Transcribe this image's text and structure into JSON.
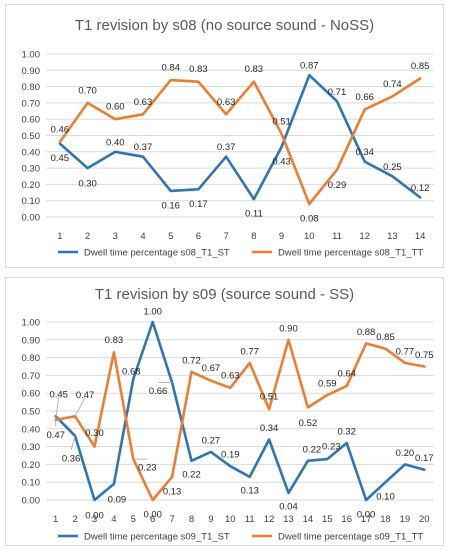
{
  "chart_data": [
    {
      "type": "line",
      "title": "T1 revision by s08 (no source sound - NoSS)",
      "xlabel": "",
      "ylabel": "",
      "ylim": [
        0,
        1
      ],
      "y_ticks": [
        "0.00",
        "0.10",
        "0.20",
        "0.30",
        "0.40",
        "0.50",
        "0.60",
        "0.70",
        "0.80",
        "0.90",
        "1.00"
      ],
      "categories": [
        "1",
        "2",
        "3",
        "4",
        "5",
        "6",
        "7",
        "8",
        "9",
        "10",
        "11",
        "12",
        "13",
        "14"
      ],
      "grid": true,
      "legend_position": "bottom",
      "series": [
        {
          "name": "Dwell time percentage s08_T1_ST",
          "color": "#2e75b6",
          "values": [
            0.45,
            0.3,
            0.4,
            0.37,
            0.16,
            0.17,
            0.37,
            0.11,
            0.43,
            0.87,
            0.71,
            0.34,
            0.25,
            0.12
          ],
          "labels": [
            "0.45",
            "0.30",
            "0.40",
            "0.37",
            "0.16",
            "0.17",
            "0.37",
            "0.11",
            "0.43",
            "0.87",
            "0.71",
            "0.34",
            "0.25",
            "0.12"
          ]
        },
        {
          "name": "Dwell time percentage s08_T1_TT",
          "color": "#ed7d31",
          "values": [
            0.46,
            0.7,
            0.6,
            0.63,
            0.84,
            0.83,
            0.63,
            0.83,
            0.51,
            0.08,
            0.29,
            0.66,
            0.74,
            0.85
          ],
          "labels": [
            "0.46",
            "0.70",
            "0.60",
            "0.63",
            "0.84",
            "0.83",
            "0.63",
            "0.83",
            "0.51",
            "0.08",
            "0.29",
            "0.66",
            "0.74",
            "0.85"
          ]
        }
      ]
    },
    {
      "type": "line",
      "title": "T1 revision by s09 (source sound - SS)",
      "xlabel": "",
      "ylabel": "",
      "ylim": [
        0,
        1
      ],
      "y_ticks": [
        "0.00",
        "0.10",
        "0.20",
        "0.30",
        "0.40",
        "0.50",
        "0.60",
        "0.70",
        "0.80",
        "0.90",
        "1.00"
      ],
      "categories": [
        "1",
        "2",
        "3",
        "4",
        "5",
        "6",
        "7",
        "8",
        "9",
        "10",
        "11",
        "12",
        "13",
        "14",
        "15",
        "16",
        "17",
        "18",
        "19",
        "20"
      ],
      "grid": true,
      "legend_position": "bottom",
      "series": [
        {
          "name": "Dwell time percentage s09_T1_ST",
          "color": "#2e75b6",
          "values": [
            0.47,
            0.36,
            0.0,
            0.09,
            0.68,
            1.0,
            0.66,
            0.22,
            0.27,
            0.19,
            0.13,
            0.34,
            0.04,
            0.22,
            0.23,
            0.32,
            0.0,
            0.1,
            0.2,
            0.17
          ],
          "labels": [
            "0.47",
            "0.36",
            "0.00",
            "0.09",
            "0.68",
            "1.00",
            "0.66",
            "0.22",
            "0.27",
            "0.19",
            "0.13",
            "0.34",
            "0.04",
            "0.22",
            "0.23",
            "0.32",
            "0.00",
            "0.10",
            "0.20",
            "0.17"
          ]
        },
        {
          "name": "Dwell time percentage s09_T1_TT",
          "color": "#ed7d31",
          "values": [
            0.45,
            0.47,
            0.3,
            0.83,
            0.23,
            0.0,
            0.13,
            0.72,
            0.67,
            0.63,
            0.77,
            0.51,
            0.9,
            0.52,
            0.59,
            0.64,
            0.88,
            0.85,
            0.77,
            0.75
          ],
          "labels": [
            "0.45",
            "0.47",
            "0.30",
            "0.83",
            "0.23",
            "0.00",
            "0.13",
            "0.72",
            "0.67",
            "0.63",
            "0.77",
            "0.51",
            "0.90",
            "0.52",
            "0.59",
            "0.64",
            "0.88",
            "0.85",
            "0.77",
            "0.75"
          ]
        }
      ]
    }
  ]
}
